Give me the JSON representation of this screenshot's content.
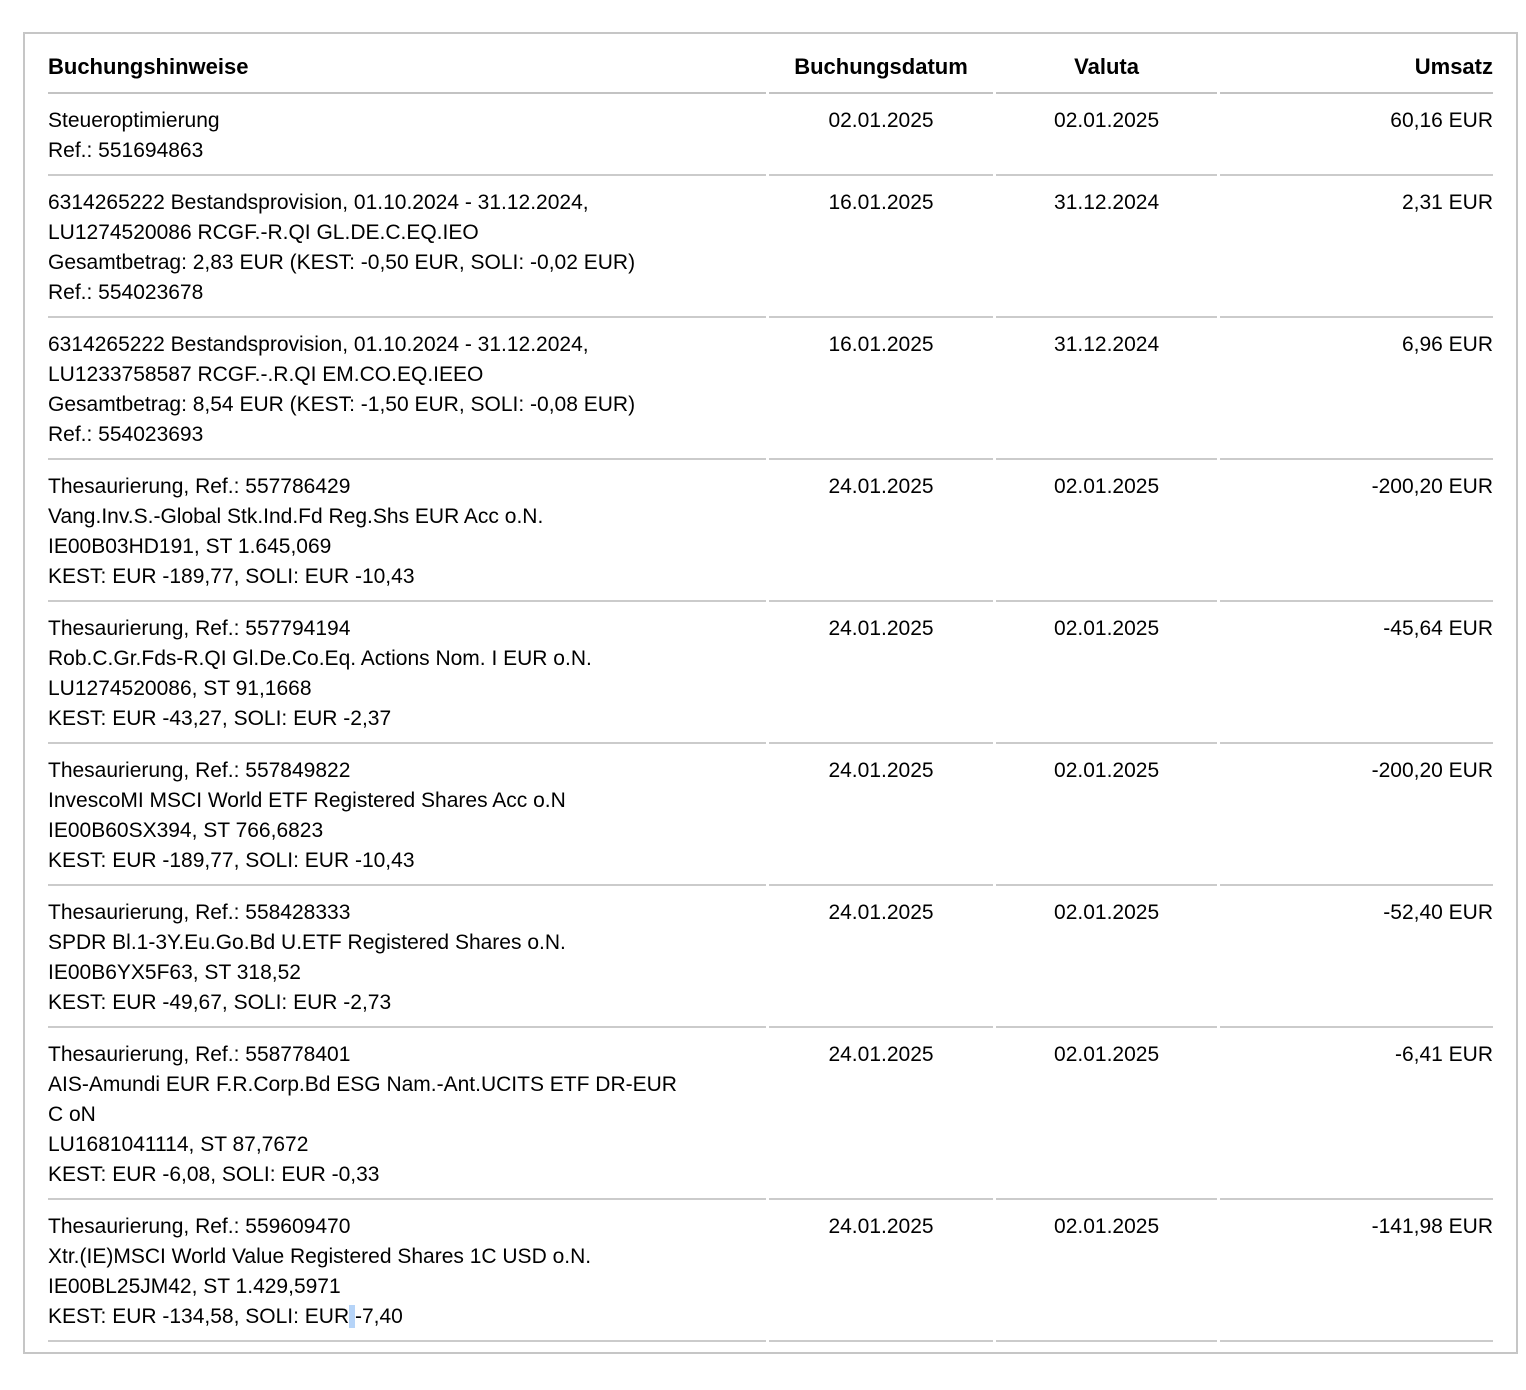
{
  "selection_color": "#b6d4f8",
  "table": {
    "headers": [
      {
        "label": "Buchungshinweise",
        "align": "left"
      },
      {
        "label": "Buchungsdatum",
        "align": "center"
      },
      {
        "label": "Valuta",
        "align": "center"
      },
      {
        "label": "Umsatz",
        "align": "right"
      }
    ],
    "rows": [
      {
        "lines": [
          "Steueroptimierung",
          "Ref.: 551694863"
        ],
        "booking_date": "02.01.2025",
        "value_date": "02.01.2025",
        "amount": "60,16 EUR"
      },
      {
        "lines": [
          "6314265222 Bestandsprovision, 01.10.2024 - 31.12.2024,",
          "LU1274520086 RCGF.-R.QI GL.DE.C.EQ.IEO",
          "Gesamtbetrag: 2,83 EUR (KEST: -0,50 EUR, SOLI: -0,02 EUR)",
          "Ref.: 554023678"
        ],
        "booking_date": "16.01.2025",
        "value_date": "31.12.2024",
        "amount": "2,31 EUR"
      },
      {
        "lines": [
          "6314265222 Bestandsprovision, 01.10.2024 - 31.12.2024,",
          "LU1233758587 RCGF.-.R.QI EM.CO.EQ.IEEO",
          "Gesamtbetrag: 8,54 EUR (KEST: -1,50 EUR, SOLI: -0,08 EUR)",
          "Ref.: 554023693"
        ],
        "booking_date": "16.01.2025",
        "value_date": "31.12.2024",
        "amount": "6,96 EUR"
      },
      {
        "lines": [
          "Thesaurierung, Ref.: 557786429",
          "Vang.Inv.S.-Global Stk.Ind.Fd Reg.Shs EUR Acc o.N.",
          "IE00B03HD191, ST 1.645,069",
          "KEST: EUR -189,77, SOLI: EUR -10,43"
        ],
        "booking_date": "24.01.2025",
        "value_date": "02.01.2025",
        "amount": "-200,20 EUR"
      },
      {
        "lines": [
          "Thesaurierung, Ref.: 557794194",
          "Rob.C.Gr.Fds-R.QI Gl.De.Co.Eq. Actions Nom. I EUR o.N.",
          "LU1274520086, ST 91,1668",
          "KEST: EUR -43,27, SOLI: EUR -2,37"
        ],
        "booking_date": "24.01.2025",
        "value_date": "02.01.2025",
        "amount": "-45,64 EUR"
      },
      {
        "lines": [
          "Thesaurierung, Ref.: 557849822",
          "InvescoMI MSCI World ETF Registered Shares Acc o.N",
          "IE00B60SX394, ST 766,6823",
          "KEST: EUR -189,77, SOLI: EUR -10,43"
        ],
        "booking_date": "24.01.2025",
        "value_date": "02.01.2025",
        "amount": "-200,20 EUR"
      },
      {
        "lines": [
          "Thesaurierung, Ref.: 558428333",
          "SPDR Bl.1-3Y.Eu.Go.Bd U.ETF Registered Shares o.N.",
          "IE00B6YX5F63, ST 318,52",
          "KEST: EUR -49,67, SOLI: EUR -2,73"
        ],
        "booking_date": "24.01.2025",
        "value_date": "02.01.2025",
        "amount": "-52,40 EUR"
      },
      {
        "lines": [
          "Thesaurierung, Ref.: 558778401",
          "AIS-Amundi EUR F.R.Corp.Bd ESG Nam.-Ant.UCITS ETF DR-EUR",
          "C oN",
          "LU1681041114, ST 87,7672",
          "KEST: EUR -6,08, SOLI: EUR -0,33"
        ],
        "booking_date": "24.01.2025",
        "value_date": "02.01.2025",
        "amount": "-6,41 EUR"
      },
      {
        "lines": [
          "Thesaurierung, Ref.: 559609470",
          "Xtr.(IE)MSCI World Value Registered Shares 1C USD o.N.",
          "IE00BL25JM42, ST 1.429,5971",
          {
            "segments": [
              {
                "text": "KEST: EUR -134,58, SOLI: EUR",
                "highlighted": false
              },
              {
                "text": " ",
                "highlighted": true
              },
              {
                "text": "-7,40",
                "highlighted": false
              }
            ]
          }
        ],
        "booking_date": "24.01.2025",
        "value_date": "02.01.2025",
        "amount": "-141,98 EUR"
      }
    ]
  }
}
